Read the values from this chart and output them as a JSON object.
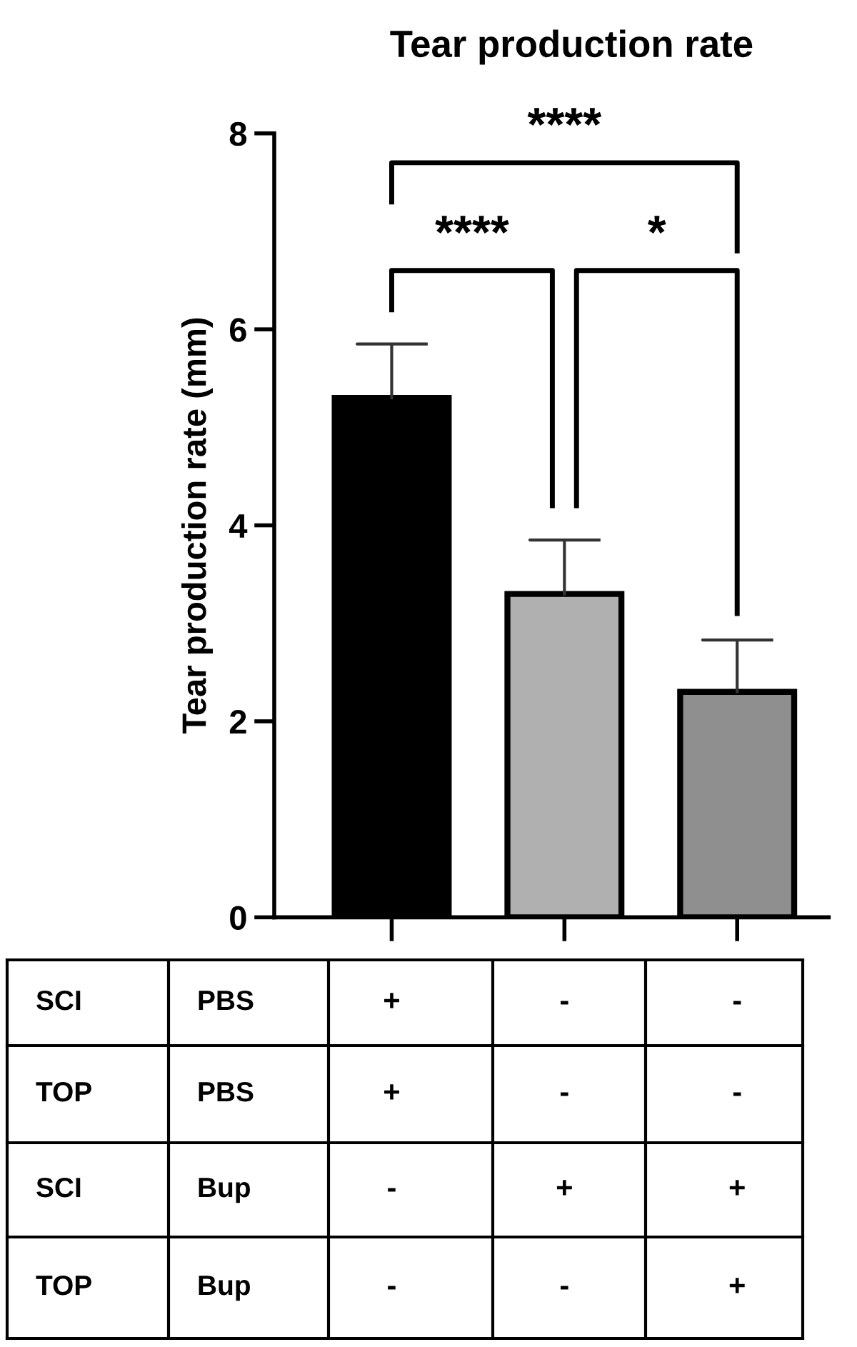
{
  "chart_data": {
    "type": "bar",
    "title": "Tear production rate",
    "ylabel": "Tear production rate (mm)",
    "categories": [
      "+\n+\n-\n-",
      "-\n-\n+\n-",
      "-\n-\n+\n+"
    ],
    "values": [
      5.3,
      3.3,
      2.3
    ],
    "colors": [
      "#000000",
      "#b0b0b0",
      "#8f8f8f"
    ],
    "errors": [
      [
        5.3,
        5.85
      ],
      [
        3.3,
        3.85
      ],
      [
        2.3,
        2.83
      ]
    ],
    "ylim": [
      0,
      8
    ],
    "yticks": [
      0,
      2,
      4,
      6,
      8
    ],
    "grid": false,
    "annotations": [
      "****",
      "****",
      "*",
      "SCI",
      "PBS",
      "TOP",
      "PBS",
      "SCI",
      "Bup",
      "TOP",
      "Bup"
    ]
  }
}
